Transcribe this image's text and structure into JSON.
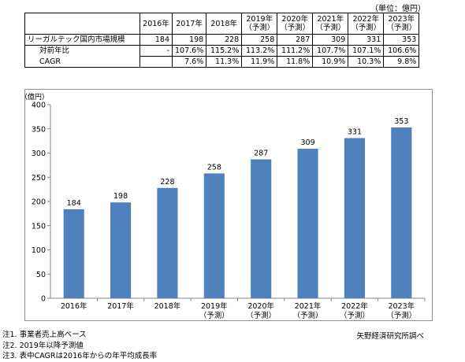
{
  "unit_note": "（単位：億円）",
  "table": {
    "headers": [
      {
        "line1": "2016年",
        "line2": ""
      },
      {
        "line1": "2017年",
        "line2": ""
      },
      {
        "line1": "2018年",
        "line2": ""
      },
      {
        "line1": "2019年",
        "line2": "（予測）"
      },
      {
        "line1": "2020年",
        "line2": "（予測）"
      },
      {
        "line1": "2021年",
        "line2": "（予測）"
      },
      {
        "line1": "2022年",
        "line2": "（予測）"
      },
      {
        "line1": "2023年",
        "line2": "（予測）"
      }
    ],
    "rows": [
      {
        "label": "リーガルテック国内市場規模",
        "values": [
          "184",
          "198",
          "228",
          "258",
          "287",
          "309",
          "331",
          "353"
        ]
      },
      {
        "label": "対前年比",
        "values": [
          "-",
          "107.6%",
          "115.2%",
          "113.2%",
          "111.2%",
          "107.7%",
          "107.1%",
          "106.6%"
        ]
      },
      {
        "label": "CAGR",
        "values": [
          "",
          "7.6%",
          "11.3%",
          "11.9%",
          "11.8%",
          "10.9%",
          "10.3%",
          "9.8%"
        ]
      }
    ]
  },
  "chart_data": {
    "type": "bar",
    "ylabel": "（億円）",
    "ylim": [
      0,
      400
    ],
    "yticks": [
      0,
      50,
      100,
      150,
      200,
      250,
      300,
      350,
      400
    ],
    "grid": false,
    "bar_color": "#4f81bd",
    "categories": [
      {
        "line1": "2016年",
        "line2": ""
      },
      {
        "line1": "2017年",
        "line2": ""
      },
      {
        "line1": "2018年",
        "line2": ""
      },
      {
        "line1": "2019年",
        "line2": "（予測）"
      },
      {
        "line1": "2020年",
        "line2": "（予測）"
      },
      {
        "line1": "2021年",
        "line2": "（予測）"
      },
      {
        "line1": "2022年",
        "line2": "（予測）"
      },
      {
        "line1": "2023年",
        "line2": "（予測）"
      }
    ],
    "values": [
      184,
      198,
      228,
      258,
      287,
      309,
      331,
      353
    ],
    "data_labels": [
      "184",
      "198",
      "228",
      "258",
      "287",
      "309",
      "331",
      "353"
    ]
  },
  "notes": [
    "注1. 事業者売上高ベース",
    "注2. 2019年以降予測値",
    "注3. 表中CAGRは2016年からの年平均成長率"
  ],
  "source": "矢野経済研究所調べ"
}
